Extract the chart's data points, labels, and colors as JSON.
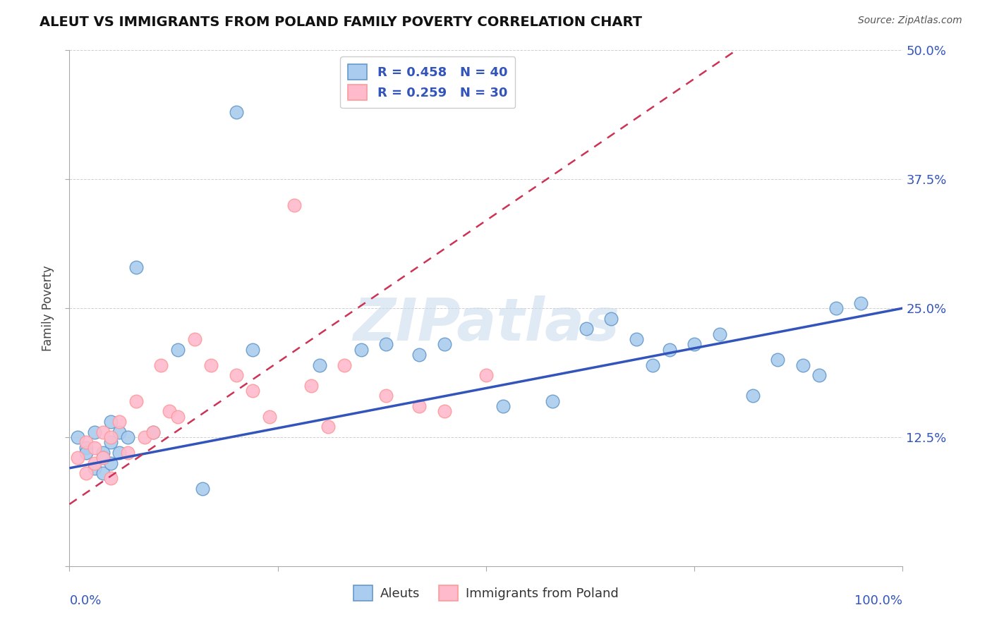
{
  "title": "ALEUT VS IMMIGRANTS FROM POLAND FAMILY POVERTY CORRELATION CHART",
  "source": "Source: ZipAtlas.com",
  "ylabel": "Family Poverty",
  "ytick_values": [
    0.0,
    0.125,
    0.25,
    0.375,
    0.5
  ],
  "ytick_labels": [
    "",
    "12.5%",
    "25.0%",
    "37.5%",
    "50.0%"
  ],
  "xlim": [
    0.0,
    1.0
  ],
  "ylim": [
    0.0,
    0.5
  ],
  "legend_blue_text": "R = 0.458   N = 40",
  "legend_pink_text": "R = 0.259   N = 30",
  "legend_label_blue": "Aleuts",
  "legend_label_pink": "Immigrants from Poland",
  "blue_face": "#AACCEE",
  "blue_edge": "#6699CC",
  "pink_face": "#FFBBCC",
  "pink_edge": "#FF9999",
  "trendline_blue_color": "#3355BB",
  "trendline_pink_color": "#CC3355",
  "text_blue_color": "#3355BB",
  "grid_color": "#BBBBBB",
  "blue_x": [
    0.01,
    0.02,
    0.02,
    0.03,
    0.03,
    0.04,
    0.04,
    0.04,
    0.05,
    0.05,
    0.05,
    0.06,
    0.06,
    0.07,
    0.08,
    0.1,
    0.13,
    0.16,
    0.2,
    0.22,
    0.3,
    0.35,
    0.38,
    0.42,
    0.45,
    0.52,
    0.58,
    0.62,
    0.65,
    0.68,
    0.7,
    0.72,
    0.75,
    0.78,
    0.82,
    0.85,
    0.88,
    0.9,
    0.92,
    0.95
  ],
  "blue_y": [
    0.125,
    0.115,
    0.11,
    0.13,
    0.095,
    0.11,
    0.09,
    0.105,
    0.14,
    0.12,
    0.1,
    0.13,
    0.11,
    0.125,
    0.29,
    0.13,
    0.21,
    0.075,
    0.44,
    0.21,
    0.195,
    0.21,
    0.215,
    0.205,
    0.215,
    0.155,
    0.16,
    0.23,
    0.24,
    0.22,
    0.195,
    0.21,
    0.215,
    0.225,
    0.165,
    0.2,
    0.195,
    0.185,
    0.25,
    0.255
  ],
  "pink_x": [
    0.01,
    0.02,
    0.02,
    0.03,
    0.03,
    0.04,
    0.04,
    0.05,
    0.05,
    0.06,
    0.07,
    0.08,
    0.09,
    0.1,
    0.11,
    0.12,
    0.13,
    0.15,
    0.17,
    0.2,
    0.22,
    0.24,
    0.27,
    0.29,
    0.31,
    0.33,
    0.38,
    0.42,
    0.45,
    0.5
  ],
  "pink_y": [
    0.105,
    0.12,
    0.09,
    0.115,
    0.1,
    0.13,
    0.105,
    0.125,
    0.085,
    0.14,
    0.11,
    0.16,
    0.125,
    0.13,
    0.195,
    0.15,
    0.145,
    0.22,
    0.195,
    0.185,
    0.17,
    0.145,
    0.35,
    0.175,
    0.135,
    0.195,
    0.165,
    0.155,
    0.15,
    0.185
  ]
}
